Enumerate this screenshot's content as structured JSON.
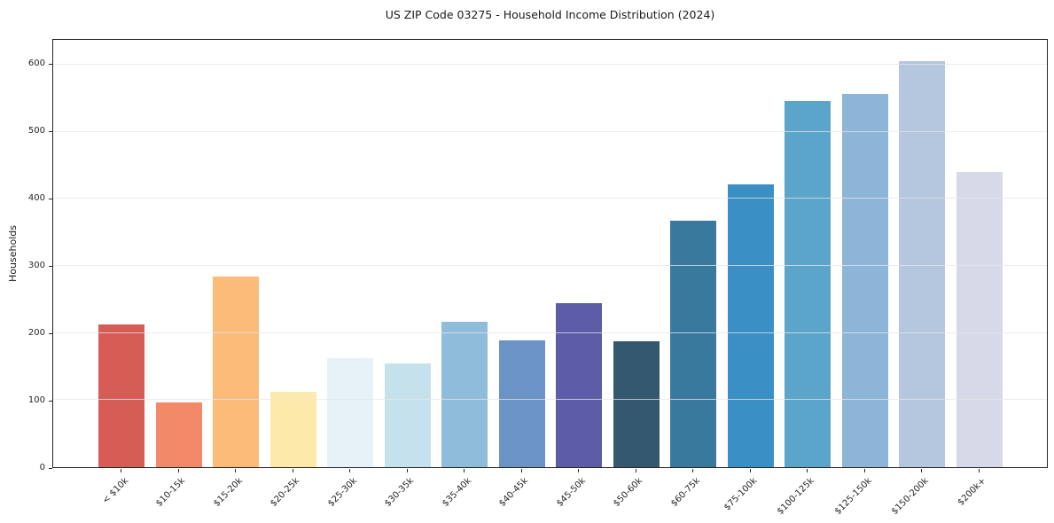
{
  "chart_data": {
    "type": "bar",
    "title": "US ZIP Code 03275 - Household Income Distribution (2024)",
    "xlabel": "",
    "ylabel": "Households",
    "categories": [
      "< $10k",
      "$10-15k",
      "$15-20k",
      "$20-25k",
      "$25-30k",
      "$30-35k",
      "$35-40k",
      "$40-45k",
      "$45-50k",
      "$50-60k",
      "$60-75k",
      "$75-100k",
      "$100-125k",
      "$125-150k",
      "$150-200k",
      "$200k+"
    ],
    "values": [
      213,
      96,
      284,
      112,
      163,
      155,
      217,
      189,
      245,
      188,
      367,
      421,
      546,
      557,
      605,
      440
    ],
    "bar_colors": [
      "#d65c56",
      "#f28968",
      "#fbbb79",
      "#fde9a9",
      "#e7f2f8",
      "#c4e1ec",
      "#90bcdb",
      "#6b93c5",
      "#5c5ca7",
      "#34596f",
      "#38799d",
      "#3a90c4",
      "#5ba4ca",
      "#8db5d8",
      "#b5c6df",
      "#d8d9e8"
    ],
    "yticks": [
      0,
      100,
      200,
      300,
      400,
      500,
      600
    ],
    "ylim": [
      0,
      637
    ],
    "grid": "horizontal",
    "legend": "none",
    "colors": {
      "background": "#ffffff",
      "axis": "#262626",
      "gridline": "#e5e5ed",
      "text": "#1a1a1a"
    }
  }
}
